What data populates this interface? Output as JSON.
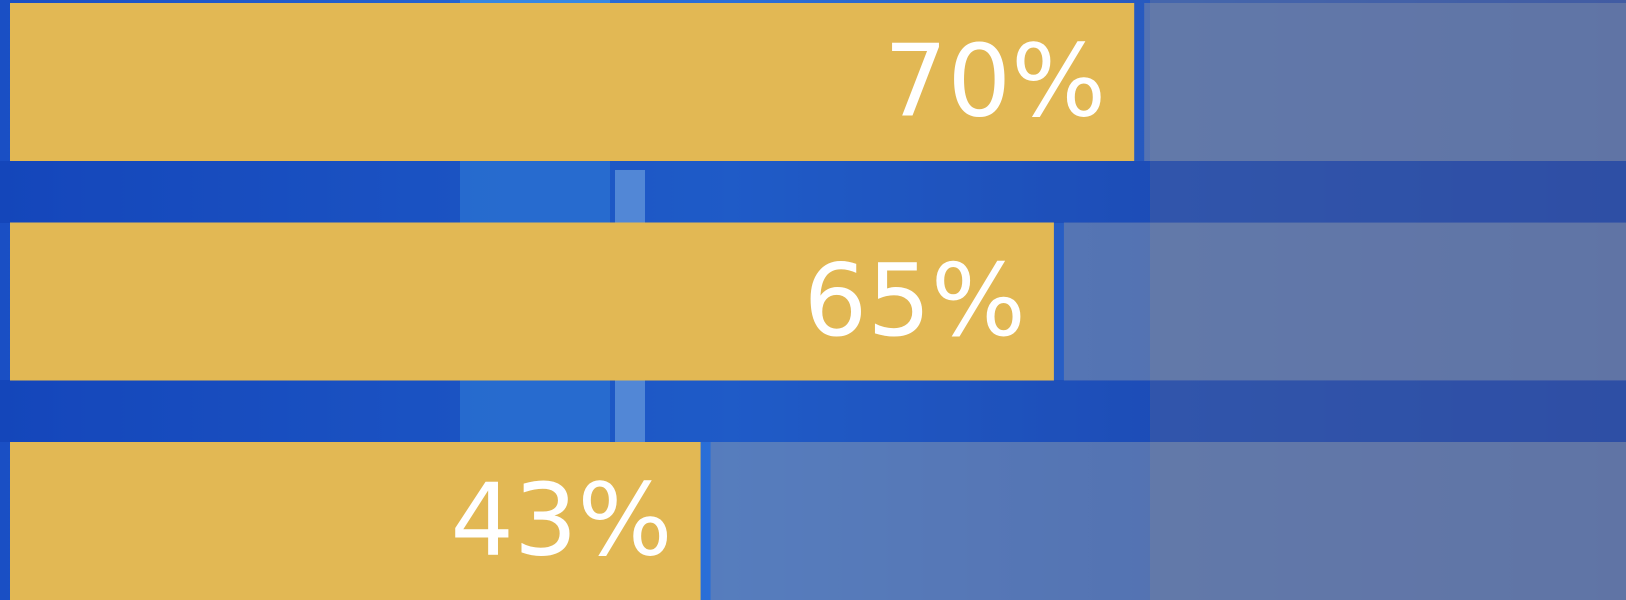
{
  "chart_data": {
    "type": "bar",
    "orientation": "horizontal",
    "values": [
      70,
      65,
      43
    ],
    "value_labels": [
      "70%",
      "65%",
      "43%"
    ],
    "color": "#e2b854",
    "xlim": [
      0,
      100
    ]
  }
}
